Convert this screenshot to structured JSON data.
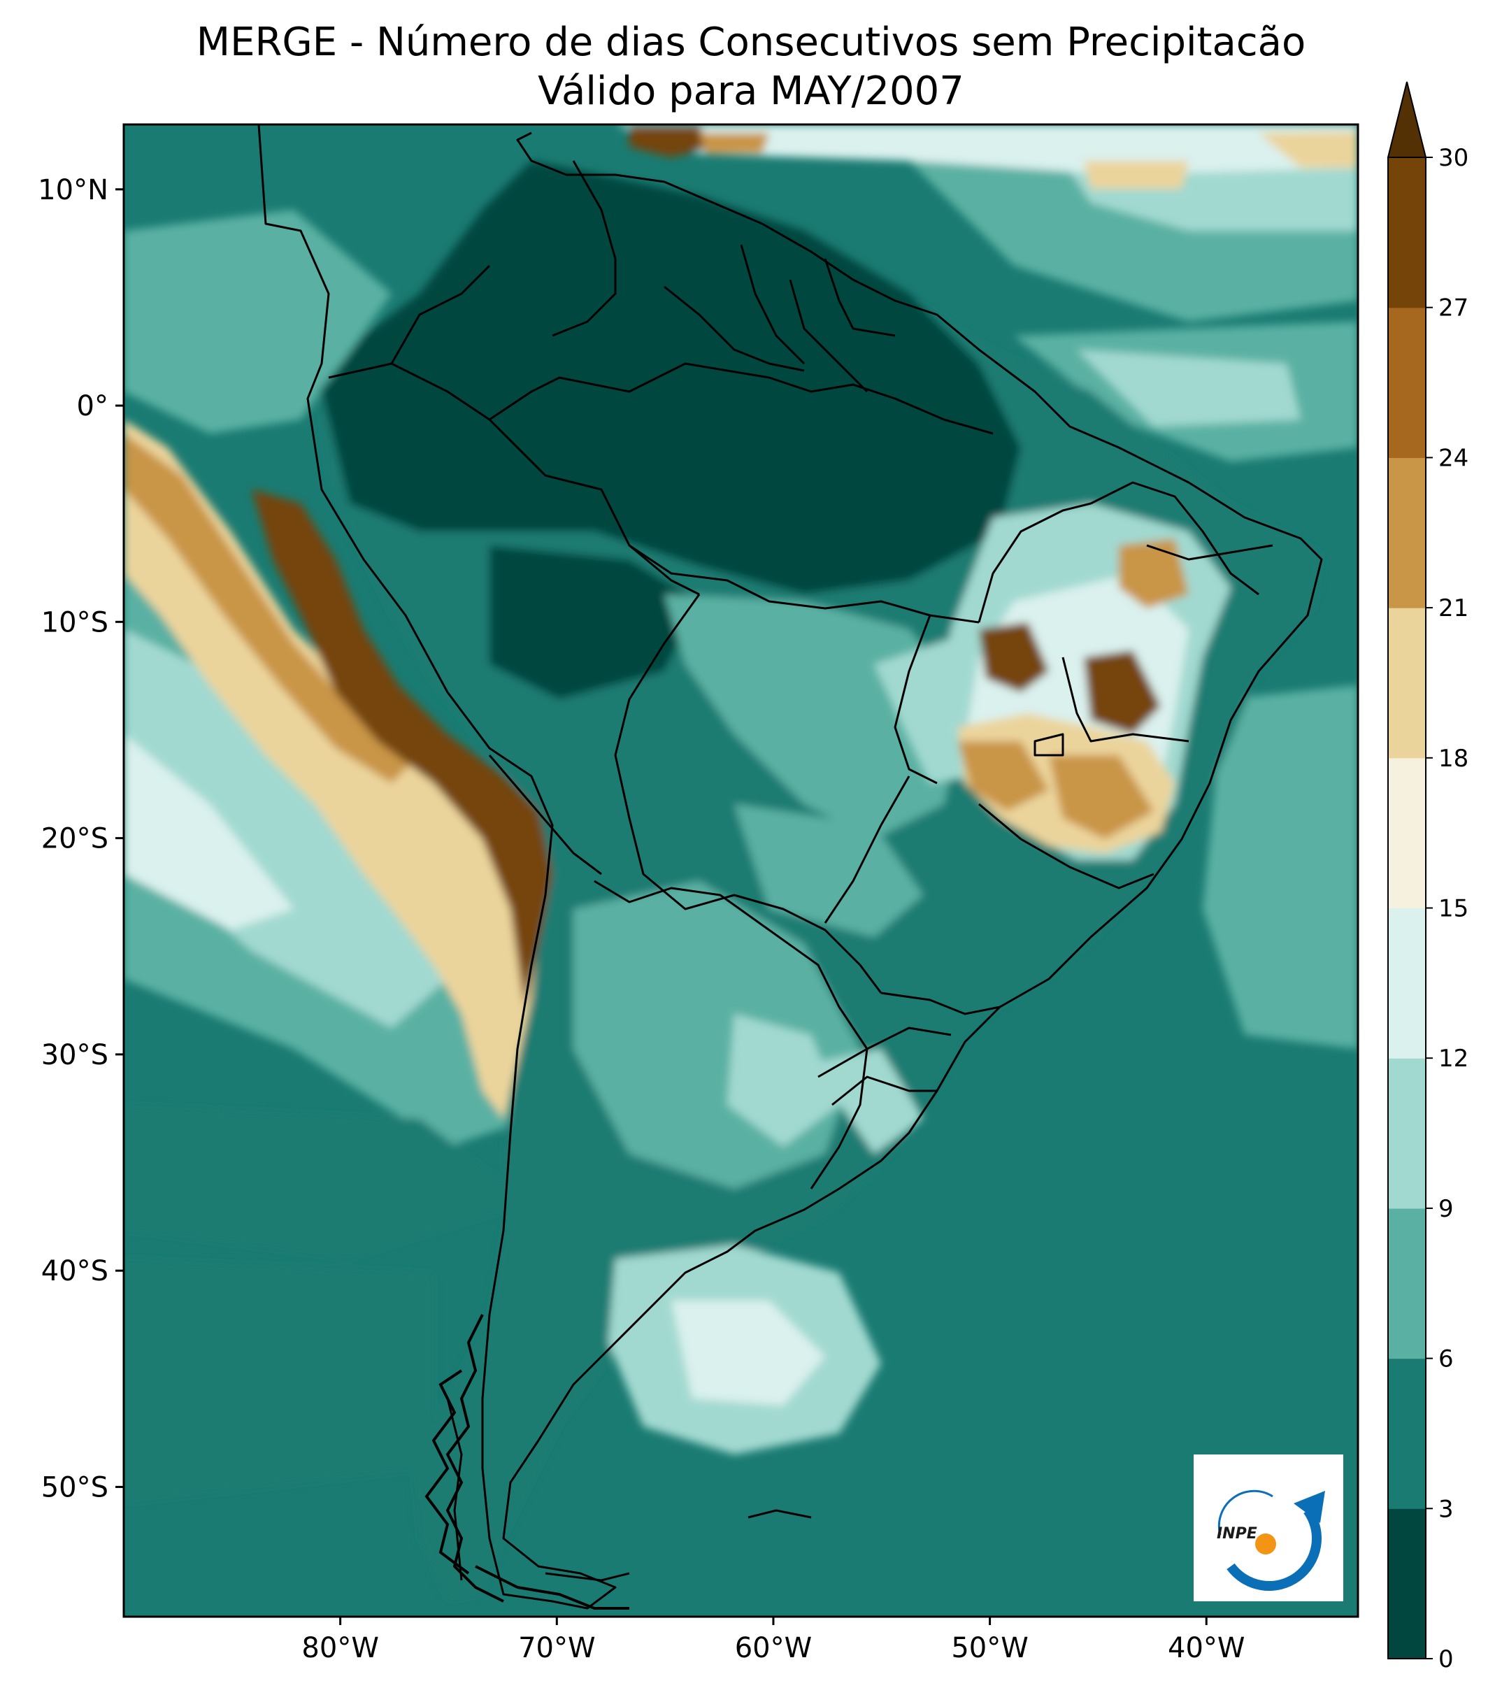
{
  "title": "MERGE - Número de dias Consecutivos sem Precipitacão",
  "subtitle": "Válido para MAY/2007",
  "map": {
    "lat_range": [
      -56,
      13
    ],
    "lon_range": [
      -90,
      -33
    ],
    "lat_ticks": [
      {
        "value": 10,
        "label": "10°N"
      },
      {
        "value": 0,
        "label": "0°"
      },
      {
        "value": -10,
        "label": "10°S"
      },
      {
        "value": -20,
        "label": "20°S"
      },
      {
        "value": -30,
        "label": "30°S"
      },
      {
        "value": -40,
        "label": "40°S"
      },
      {
        "value": -50,
        "label": "50°S"
      }
    ],
    "lon_ticks": [
      {
        "value": -80,
        "label": "80°W"
      },
      {
        "value": -70,
        "label": "70°W"
      },
      {
        "value": -60,
        "label": "60°W"
      },
      {
        "value": -50,
        "label": "50°W"
      },
      {
        "value": -40,
        "label": "40°W"
      }
    ]
  },
  "colorbar": {
    "levels": [
      0,
      3,
      6,
      9,
      12,
      15,
      18,
      21,
      24,
      27,
      30
    ],
    "labels": [
      "0",
      "3",
      "6",
      "9",
      "12",
      "15",
      "18",
      "21",
      "24",
      "27",
      "30"
    ],
    "colors": [
      "#01473f",
      "#1a7b72",
      "#5ab1a3",
      "#a1d9d0",
      "#daf1ee",
      "#f6f1df",
      "#ebd49b",
      "#c99546",
      "#a6681f",
      "#754409"
    ],
    "extend_color": "#543005",
    "extend": "max"
  },
  "logo": {
    "text": "INPE",
    "ring_color": "#0b6fb8",
    "dot_color": "#f39414"
  }
}
